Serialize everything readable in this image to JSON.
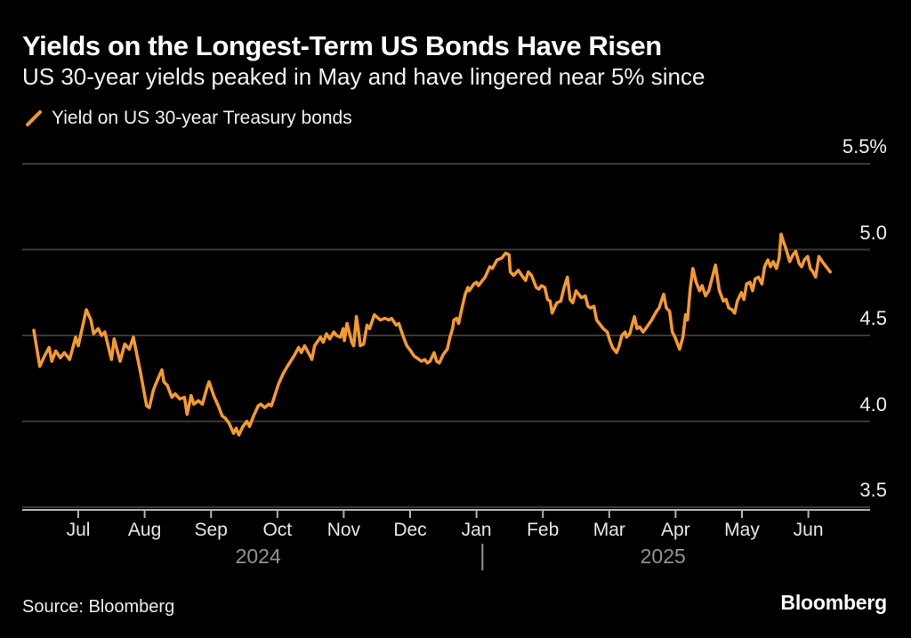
{
  "header": {
    "title": "Yields on the Longest-Term US Bonds Have Risen",
    "subtitle": "US 30-year yields peaked in May and have lingered near 5% since"
  },
  "legend": {
    "icon": "orange-slash-line-sample",
    "label": "Yield on US 30-year Treasury bonds"
  },
  "footer": {
    "source": "Source: Bloomberg",
    "brand": "Bloomberg"
  },
  "colors": {
    "background": "#000000",
    "line": "#F79B28",
    "grid": "#393939",
    "axis": "#b3b3b3",
    "title": "#ffffff",
    "subtitle": "#f2f2f2",
    "tick_label": "#efefef",
    "month_label": "#e6e6e6",
    "year_label": "#929292"
  },
  "chart_data": {
    "type": "line",
    "title": "Yields on the Longest-Term US Bonds Have Risen",
    "subtitle": "US 30-year yields peaked in May and have lingered near 5% since",
    "ylabel": "%",
    "grid": "horizontal-only",
    "legend_position": "top-left",
    "y_ticks": [
      {
        "v": 5.5,
        "label": "5.5%"
      },
      {
        "v": 5.0,
        "label": "5.0"
      },
      {
        "v": 4.5,
        "label": "4.5"
      },
      {
        "v": 4.0,
        "label": "4.0"
      },
      {
        "v": 3.5,
        "label": "3.5"
      }
    ],
    "ylim": [
      3.5,
      5.5
    ],
    "x_ticks": [
      "Jul",
      "Aug",
      "Sep",
      "Oct",
      "Nov",
      "Dec",
      "Jan",
      "Feb",
      "Mar",
      "Apr",
      "May",
      "Jun"
    ],
    "x_unit": "month index, 0 = Jul 2024 tick, 11 = Jun 2025 tick",
    "x_range_months": [
      -0.67,
      11.33
    ],
    "years": [
      {
        "label": "2024",
        "x_month": 2.71
      },
      {
        "label": "2025",
        "x_month": 8.81
      }
    ],
    "year_separator_x_month": 6.09,
    "series": [
      {
        "name": "Yield on US 30-year Treasury bonds",
        "color": "#F79B28",
        "points": [
          [
            -0.67,
            4.53
          ],
          [
            -0.58,
            4.32
          ],
          [
            -0.51,
            4.38
          ],
          [
            -0.44,
            4.43
          ],
          [
            -0.4,
            4.35
          ],
          [
            -0.34,
            4.41
          ],
          [
            -0.27,
            4.37
          ],
          [
            -0.21,
            4.4
          ],
          [
            -0.13,
            4.36
          ],
          [
            -0.04,
            4.49
          ],
          [
            0.0,
            4.44
          ],
          [
            0.12,
            4.65
          ],
          [
            0.19,
            4.59
          ],
          [
            0.23,
            4.51
          ],
          [
            0.3,
            4.54
          ],
          [
            0.35,
            4.5
          ],
          [
            0.4,
            4.52
          ],
          [
            0.5,
            4.36
          ],
          [
            0.54,
            4.48
          ],
          [
            0.63,
            4.35
          ],
          [
            0.7,
            4.45
          ],
          [
            0.77,
            4.42
          ],
          [
            0.83,
            4.49
          ],
          [
            0.94,
            4.28
          ],
          [
            1.03,
            4.09
          ],
          [
            1.07,
            4.08
          ],
          [
            1.13,
            4.18
          ],
          [
            1.17,
            4.22
          ],
          [
            1.26,
            4.3
          ],
          [
            1.29,
            4.23
          ],
          [
            1.34,
            4.21
          ],
          [
            1.41,
            4.14
          ],
          [
            1.46,
            4.16
          ],
          [
            1.53,
            4.13
          ],
          [
            1.6,
            4.14
          ],
          [
            1.64,
            4.04
          ],
          [
            1.7,
            4.15
          ],
          [
            1.74,
            4.1
          ],
          [
            1.81,
            4.12
          ],
          [
            1.87,
            4.1
          ],
          [
            1.95,
            4.21
          ],
          [
            1.97,
            4.23
          ],
          [
            2.04,
            4.15
          ],
          [
            2.11,
            4.09
          ],
          [
            2.17,
            4.03
          ],
          [
            2.21,
            4.02
          ],
          [
            2.27,
            3.99
          ],
          [
            2.34,
            3.93
          ],
          [
            2.38,
            3.96
          ],
          [
            2.42,
            3.92
          ],
          [
            2.48,
            3.97
          ],
          [
            2.54,
            4.0
          ],
          [
            2.58,
            3.97
          ],
          [
            2.64,
            4.03
          ],
          [
            2.71,
            4.09
          ],
          [
            2.75,
            4.1
          ],
          [
            2.81,
            4.08
          ],
          [
            2.87,
            4.1
          ],
          [
            2.91,
            4.09
          ],
          [
            3.02,
            4.22
          ],
          [
            3.09,
            4.28
          ],
          [
            3.15,
            4.32
          ],
          [
            3.25,
            4.38
          ],
          [
            3.32,
            4.43
          ],
          [
            3.36,
            4.4
          ],
          [
            3.41,
            4.44
          ],
          [
            3.48,
            4.39
          ],
          [
            3.52,
            4.36
          ],
          [
            3.56,
            4.44
          ],
          [
            3.65,
            4.49
          ],
          [
            3.69,
            4.46
          ],
          [
            3.74,
            4.51
          ],
          [
            3.79,
            4.48
          ],
          [
            3.85,
            4.52
          ],
          [
            3.89,
            4.5
          ],
          [
            3.95,
            4.49
          ],
          [
            3.99,
            4.54
          ],
          [
            4.01,
            4.47
          ],
          [
            4.05,
            4.57
          ],
          [
            4.12,
            4.46
          ],
          [
            4.15,
            4.44
          ],
          [
            4.19,
            4.61
          ],
          [
            4.23,
            4.5
          ],
          [
            4.25,
            4.44
          ],
          [
            4.3,
            4.45
          ],
          [
            4.35,
            4.56
          ],
          [
            4.39,
            4.54
          ],
          [
            4.46,
            4.62
          ],
          [
            4.55,
            4.59
          ],
          [
            4.62,
            4.6
          ],
          [
            4.68,
            4.59
          ],
          [
            4.72,
            4.6
          ],
          [
            4.79,
            4.56
          ],
          [
            4.83,
            4.57
          ],
          [
            4.9,
            4.49
          ],
          [
            4.95,
            4.44
          ],
          [
            4.99,
            4.42
          ],
          [
            5.06,
            4.38
          ],
          [
            5.1,
            4.37
          ],
          [
            5.17,
            4.35
          ],
          [
            5.22,
            4.36
          ],
          [
            5.26,
            4.34
          ],
          [
            5.3,
            4.35
          ],
          [
            5.36,
            4.4
          ],
          [
            5.4,
            4.35
          ],
          [
            5.44,
            4.34
          ],
          [
            5.5,
            4.39
          ],
          [
            5.56,
            4.42
          ],
          [
            5.6,
            4.49
          ],
          [
            5.64,
            4.54
          ],
          [
            5.66,
            4.59
          ],
          [
            5.7,
            4.6
          ],
          [
            5.73,
            4.57
          ],
          [
            5.77,
            4.64
          ],
          [
            5.83,
            4.74
          ],
          [
            5.87,
            4.78
          ],
          [
            5.89,
            4.76
          ],
          [
            5.96,
            4.8
          ],
          [
            6.0,
            4.81
          ],
          [
            6.03,
            4.79
          ],
          [
            6.09,
            4.82
          ],
          [
            6.13,
            4.84
          ],
          [
            6.2,
            4.9
          ],
          [
            6.24,
            4.89
          ],
          [
            6.31,
            4.94
          ],
          [
            6.38,
            4.95
          ],
          [
            6.44,
            4.98
          ],
          [
            6.49,
            4.97
          ],
          [
            6.51,
            4.87
          ],
          [
            6.56,
            4.85
          ],
          [
            6.63,
            4.88
          ],
          [
            6.7,
            4.84
          ],
          [
            6.74,
            4.82
          ],
          [
            6.78,
            4.87
          ],
          [
            6.83,
            4.85
          ],
          [
            6.9,
            4.78
          ],
          [
            6.94,
            4.77
          ],
          [
            6.98,
            4.79
          ],
          [
            7.03,
            4.78
          ],
          [
            7.07,
            4.71
          ],
          [
            7.11,
            4.7
          ],
          [
            7.14,
            4.63
          ],
          [
            7.21,
            4.69
          ],
          [
            7.27,
            4.7
          ],
          [
            7.32,
            4.78
          ],
          [
            7.37,
            4.84
          ],
          [
            7.41,
            4.71
          ],
          [
            7.45,
            4.69
          ],
          [
            7.5,
            4.76
          ],
          [
            7.54,
            4.74
          ],
          [
            7.58,
            4.72
          ],
          [
            7.64,
            4.73
          ],
          [
            7.68,
            4.67
          ],
          [
            7.72,
            4.66
          ],
          [
            7.77,
            4.67
          ],
          [
            7.81,
            4.59
          ],
          [
            7.85,
            4.57
          ],
          [
            7.91,
            4.54
          ],
          [
            7.97,
            4.52
          ],
          [
            8.01,
            4.47
          ],
          [
            8.05,
            4.43
          ],
          [
            8.11,
            4.4
          ],
          [
            8.15,
            4.44
          ],
          [
            8.19,
            4.5
          ],
          [
            8.24,
            4.52
          ],
          [
            8.26,
            4.49
          ],
          [
            8.31,
            4.51
          ],
          [
            8.35,
            4.57
          ],
          [
            8.38,
            4.61
          ],
          [
            8.42,
            4.54
          ],
          [
            8.46,
            4.55
          ],
          [
            8.51,
            4.52
          ],
          [
            8.55,
            4.54
          ],
          [
            8.64,
            4.59
          ],
          [
            8.71,
            4.64
          ],
          [
            8.75,
            4.66
          ],
          [
            8.82,
            4.74
          ],
          [
            8.86,
            4.66
          ],
          [
            8.91,
            4.64
          ],
          [
            8.95,
            4.52
          ],
          [
            8.99,
            4.49
          ],
          [
            9.06,
            4.42
          ],
          [
            9.11,
            4.49
          ],
          [
            9.15,
            4.62
          ],
          [
            9.18,
            4.59
          ],
          [
            9.22,
            4.77
          ],
          [
            9.26,
            4.89
          ],
          [
            9.31,
            4.81
          ],
          [
            9.36,
            4.76
          ],
          [
            9.4,
            4.79
          ],
          [
            9.45,
            4.73
          ],
          [
            9.5,
            4.76
          ],
          [
            9.6,
            4.91
          ],
          [
            9.66,
            4.76
          ],
          [
            9.72,
            4.7
          ],
          [
            9.76,
            4.71
          ],
          [
            9.8,
            4.66
          ],
          [
            9.85,
            4.65
          ],
          [
            9.89,
            4.63
          ],
          [
            9.93,
            4.7
          ],
          [
            9.99,
            4.75
          ],
          [
            10.03,
            4.71
          ],
          [
            10.07,
            4.8
          ],
          [
            10.12,
            4.81
          ],
          [
            10.16,
            4.76
          ],
          [
            10.2,
            4.83
          ],
          [
            10.25,
            4.84
          ],
          [
            10.3,
            4.8
          ],
          [
            10.34,
            4.9
          ],
          [
            10.39,
            4.94
          ],
          [
            10.43,
            4.9
          ],
          [
            10.47,
            4.93
          ],
          [
            10.52,
            4.89
          ],
          [
            10.56,
            4.95
          ],
          [
            10.59,
            5.09
          ],
          [
            10.63,
            5.04
          ],
          [
            10.66,
            5.01
          ],
          [
            10.72,
            4.93
          ],
          [
            10.77,
            4.97
          ],
          [
            10.81,
            4.99
          ],
          [
            10.86,
            4.92
          ],
          [
            10.9,
            4.9
          ],
          [
            10.94,
            4.94
          ],
          [
            10.99,
            4.96
          ],
          [
            11.03,
            4.89
          ],
          [
            11.07,
            4.87
          ],
          [
            11.11,
            4.84
          ],
          [
            11.16,
            4.96
          ],
          [
            11.21,
            4.93
          ],
          [
            11.27,
            4.9
          ],
          [
            11.33,
            4.87
          ]
        ]
      }
    ]
  }
}
